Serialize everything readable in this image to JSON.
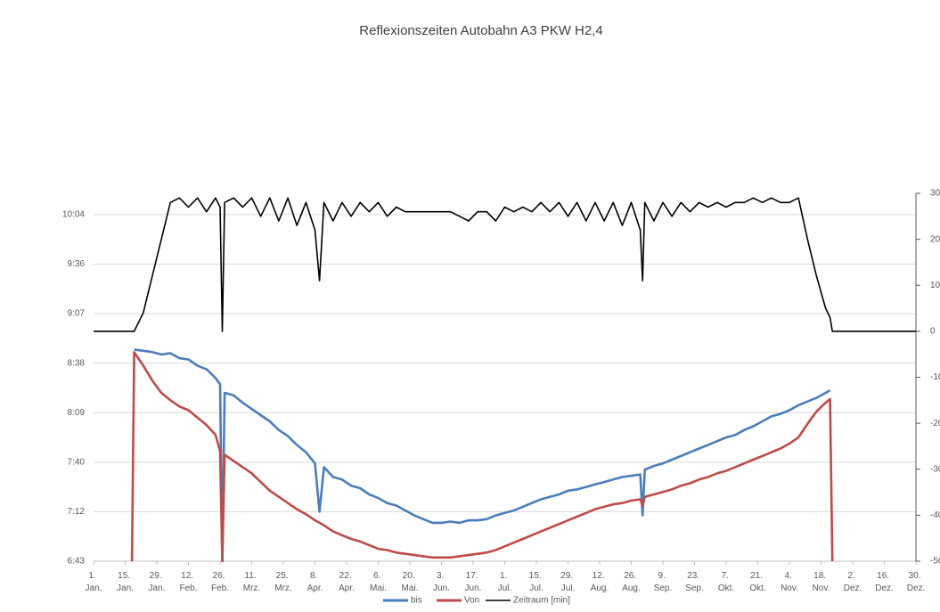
{
  "chart_data": {
    "type": "line",
    "title": "Reflexionszeiten  Autobahn A3 PKW H2,4",
    "x": [
      1,
      18,
      19,
      23,
      27,
      31,
      35,
      39,
      43,
      47,
      51,
      55,
      57,
      58,
      59,
      63,
      67,
      71,
      75,
      79,
      83,
      87,
      91,
      95,
      99,
      101,
      103,
      107,
      111,
      115,
      119,
      123,
      127,
      131,
      135,
      139,
      143,
      147,
      151,
      155,
      159,
      163,
      167,
      171,
      175,
      179,
      183,
      187,
      191,
      195,
      199,
      203,
      207,
      211,
      215,
      219,
      223,
      227,
      231,
      235,
      239,
      243,
      244,
      245,
      249,
      253,
      257,
      261,
      265,
      269,
      273,
      277,
      281,
      285,
      289,
      293,
      297,
      301,
      305,
      309,
      313,
      317,
      321,
      325,
      327,
      328,
      365
    ],
    "series": [
      {
        "name": "bis",
        "color": "#4a7ebb",
        "values": [
          null,
          null,
          0.3655,
          0.365,
          0.3645,
          0.3635,
          0.364,
          0.362,
          0.3615,
          0.359,
          0.3575,
          0.354,
          0.3515,
          0.28,
          0.348,
          0.347,
          0.344,
          0.3415,
          0.339,
          0.3365,
          0.333,
          0.3305,
          0.327,
          0.324,
          0.3195,
          0.3,
          0.318,
          0.314,
          0.313,
          0.3105,
          0.3095,
          0.307,
          0.3055,
          0.3035,
          0.3025,
          0.3005,
          0.2985,
          0.297,
          0.2955,
          0.2955,
          0.296,
          0.2955,
          0.2965,
          0.2965,
          0.297,
          0.2985,
          0.2995,
          0.3005,
          0.302,
          0.3035,
          0.305,
          0.306,
          0.307,
          0.3085,
          0.309,
          0.31,
          0.311,
          0.312,
          0.313,
          0.314,
          0.3145,
          0.315,
          0.2985,
          0.317,
          0.3185,
          0.3195,
          0.321,
          0.3225,
          0.324,
          0.3255,
          0.327,
          0.3285,
          0.33,
          0.331,
          0.333,
          0.3345,
          0.3365,
          0.3385,
          0.3395,
          0.341,
          0.343,
          0.3445,
          0.346,
          0.348,
          0.349,
          null,
          null
        ]
      },
      {
        "name": "Von",
        "color": "#be4b48",
        "values": [
          null,
          0.28,
          0.3644,
          0.359,
          0.353,
          0.348,
          0.345,
          0.3425,
          0.341,
          0.338,
          0.335,
          0.331,
          0.3245,
          0.28,
          0.323,
          0.3205,
          0.318,
          0.3155,
          0.312,
          0.3085,
          0.306,
          0.3035,
          0.301,
          0.299,
          0.2965,
          0.2955,
          0.2945,
          0.292,
          0.2905,
          0.289,
          0.288,
          0.2865,
          0.285,
          0.2845,
          0.2835,
          0.283,
          0.2825,
          0.282,
          0.2815,
          0.2815,
          0.2815,
          0.282,
          0.2825,
          0.283,
          0.2835,
          0.2845,
          0.286,
          0.2875,
          0.289,
          0.2905,
          0.292,
          0.2935,
          0.295,
          0.2965,
          0.298,
          0.2995,
          0.301,
          0.302,
          0.303,
          0.3035,
          0.3045,
          0.305,
          0.3025,
          0.306,
          0.307,
          0.308,
          0.309,
          0.3105,
          0.3115,
          0.313,
          0.314,
          0.3155,
          0.3165,
          0.318,
          0.3195,
          0.321,
          0.3225,
          0.324,
          0.3255,
          0.3275,
          0.33,
          0.3355,
          0.3405,
          0.344,
          0.3455,
          0.28,
          null
        ]
      },
      {
        "name": "Zeitraum [min]",
        "color": "#000000",
        "axis": "y2",
        "values": [
          0,
          0,
          0,
          4,
          12,
          20,
          28,
          29,
          27,
          29,
          26,
          29,
          27,
          0,
          28,
          29,
          27,
          29,
          25,
          29,
          24,
          29,
          23,
          28,
          22,
          11,
          28,
          24,
          28,
          25,
          28,
          26,
          28,
          25,
          27,
          26,
          26,
          26,
          26,
          26,
          26,
          25,
          24,
          26,
          26,
          24,
          27,
          26,
          27,
          26,
          28,
          26,
          28,
          25,
          28,
          24,
          28,
          24,
          28,
          23,
          28,
          22,
          11,
          28,
          24,
          28,
          25,
          28,
          26,
          28,
          27,
          28,
          27,
          28,
          28,
          29,
          28,
          29,
          28,
          28,
          29,
          20,
          12,
          5,
          3,
          0,
          0
        ]
      }
    ],
    "xlim": [
      1,
      365
    ],
    "xticks": [
      {
        "value": 1,
        "label": "1. Jan."
      },
      {
        "value": 15,
        "label": "15. Jan."
      },
      {
        "value": 29,
        "label": "29. Jan."
      },
      {
        "value": 43,
        "label": "12. Feb."
      },
      {
        "value": 57,
        "label": "26. Feb."
      },
      {
        "value": 71,
        "label": "11. Mrz."
      },
      {
        "value": 85,
        "label": "25. Mrz."
      },
      {
        "value": 99,
        "label": "8. Apr."
      },
      {
        "value": 113,
        "label": "22. Apr."
      },
      {
        "value": 127,
        "label": "6. Mai."
      },
      {
        "value": 141,
        "label": "20. Mai."
      },
      {
        "value": 155,
        "label": "3. Jun."
      },
      {
        "value": 169,
        "label": "17. Jun."
      },
      {
        "value": 183,
        "label": "1. Jul."
      },
      {
        "value": 197,
        "label": "15. Jul."
      },
      {
        "value": 211,
        "label": "29. Jul."
      },
      {
        "value": 225,
        "label": "12. Aug."
      },
      {
        "value": 239,
        "label": "26. Aug."
      },
      {
        "value": 253,
        "label": "9. Sep."
      },
      {
        "value": 267,
        "label": "23. Sep."
      },
      {
        "value": 281,
        "label": "7. Okt."
      },
      {
        "value": 295,
        "label": "21. Okt."
      },
      {
        "value": 309,
        "label": "4. Nov."
      },
      {
        "value": 323,
        "label": "18. Nov."
      },
      {
        "value": 337,
        "label": "2. Dez."
      },
      {
        "value": 351,
        "label": "16. Dez."
      },
      {
        "value": 365,
        "label": "30. Dez."
      }
    ],
    "ylim": [
      0.28,
      0.4286
    ],
    "yticks": [
      {
        "value": 0.28,
        "label": "6:43"
      },
      {
        "value": 0.3,
        "label": "7:12"
      },
      {
        "value": 0.32,
        "label": "7:40"
      },
      {
        "value": 0.34,
        "label": "8:09"
      },
      {
        "value": 0.36,
        "label": "8:38"
      },
      {
        "value": 0.38,
        "label": "9:07"
      },
      {
        "value": 0.4,
        "label": "9:36"
      },
      {
        "value": 0.42,
        "label": "10:04"
      }
    ],
    "y2lim": [
      -50,
      30
    ],
    "y2ticks": [
      -50,
      -40,
      -30,
      -20,
      -10,
      0,
      10,
      20,
      30
    ],
    "grid": true,
    "legend": "bottom"
  }
}
